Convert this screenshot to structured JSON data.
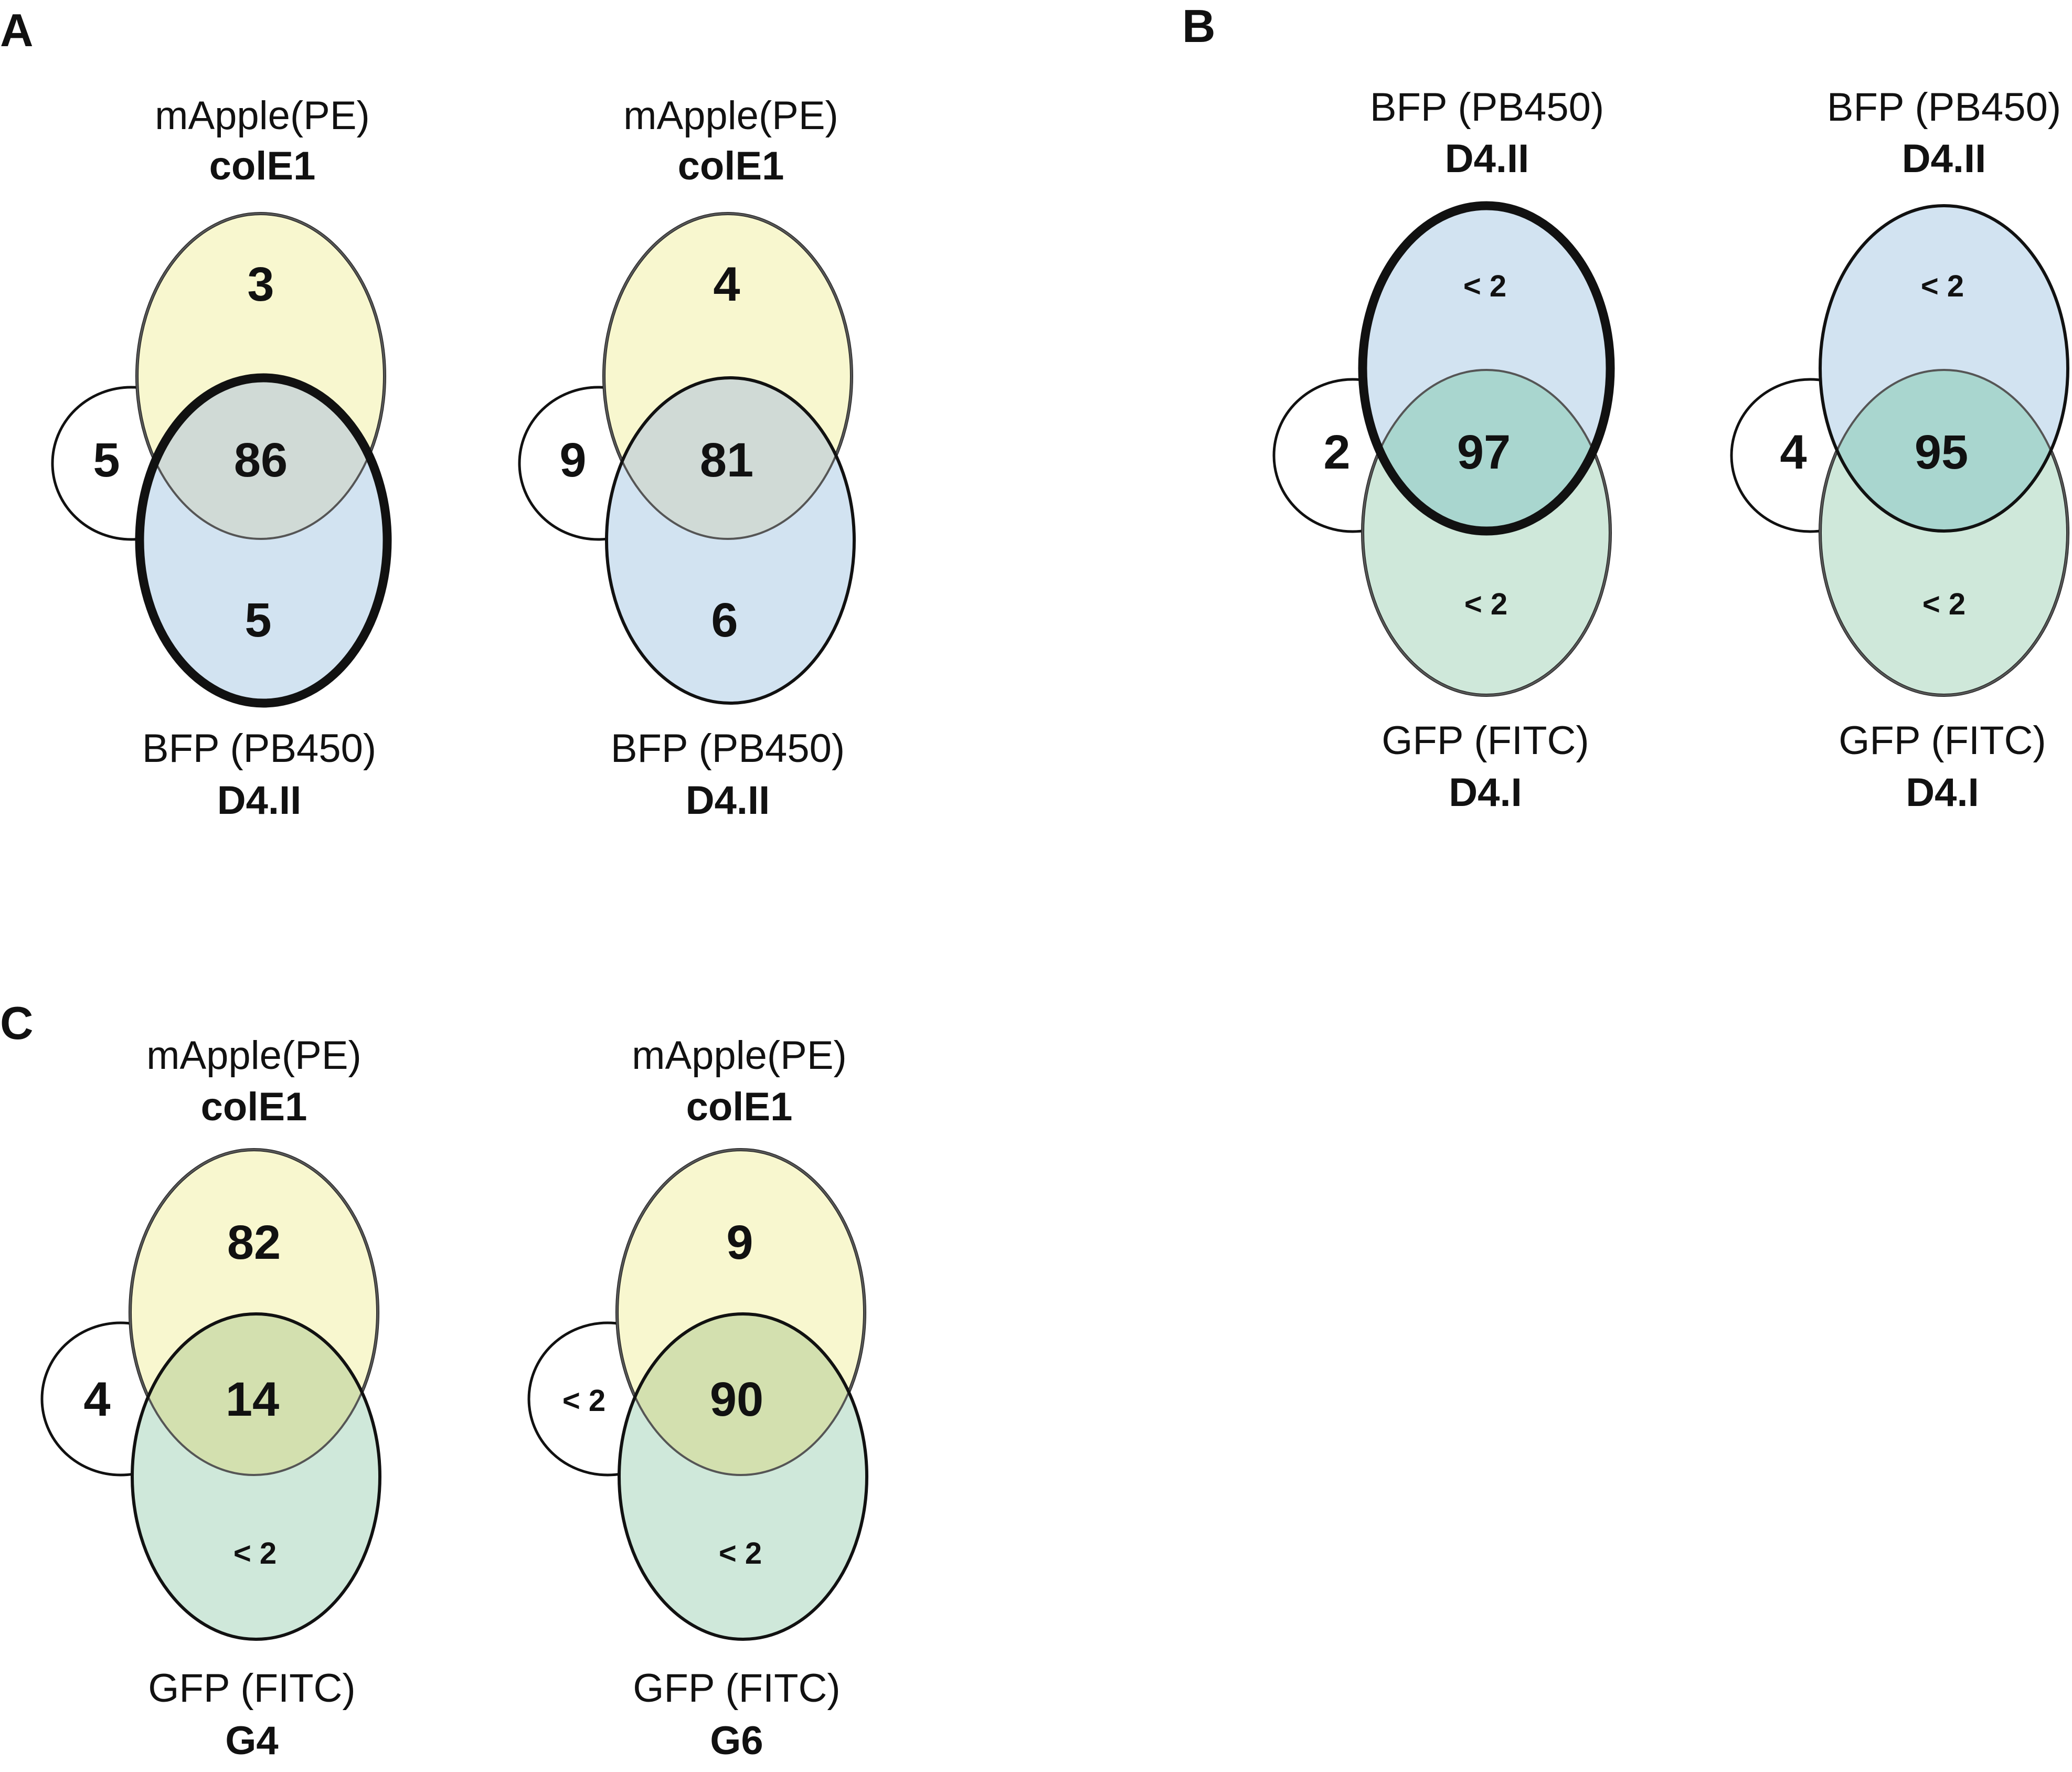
{
  "colors": {
    "yellow": "#f8f7cf",
    "blue": "#d2e3f1",
    "green": "#cfe8da",
    "overlap_yellow_blue": "#d0dad6",
    "overlap_blue_green": "#a9d6cf",
    "overlap_yellow_green": "#d3e0af",
    "outline": "#111111"
  },
  "panels": {
    "A": "A",
    "B": "B",
    "C": "C"
  },
  "venns": [
    {
      "top_fluor": "mApple(PE)",
      "top_name": "colE1",
      "bottom_fluor": "BFP (PB450)",
      "bottom_name": "D4.II",
      "top_only": "3",
      "overlap": "86",
      "bottom_only": "5",
      "neither": "5"
    },
    {
      "top_fluor": "mApple(PE)",
      "top_name": "colE1",
      "bottom_fluor": "BFP (PB450)",
      "bottom_name": "D4.II",
      "top_only": "4",
      "overlap": "81",
      "bottom_only": "6",
      "neither": "9"
    },
    {
      "top_fluor": "BFP (PB450)",
      "top_name": "D4.II",
      "bottom_fluor": "GFP (FITC)",
      "bottom_name": "D4.I",
      "top_only": "< 2",
      "overlap": "97",
      "bottom_only": "< 2",
      "neither": "2"
    },
    {
      "top_fluor": "BFP (PB450)",
      "top_name": "D4.II",
      "bottom_fluor": "GFP (FITC)",
      "bottom_name": "D4.I",
      "top_only": "< 2",
      "overlap": "95",
      "bottom_only": "< 2",
      "neither": "4"
    },
    {
      "top_fluor": "mApple(PE)",
      "top_name": "colE1",
      "bottom_fluor": "GFP (FITC)",
      "bottom_name": "G4",
      "top_only": "82",
      "overlap": "14",
      "bottom_only": "< 2",
      "neither": "4"
    },
    {
      "top_fluor": "mApple(PE)",
      "top_name": "colE1",
      "bottom_fluor": "GFP (FITC)",
      "bottom_name": "G6",
      "top_only": "9",
      "overlap": "90",
      "bottom_only": "< 2",
      "neither": "< 2"
    }
  ]
}
